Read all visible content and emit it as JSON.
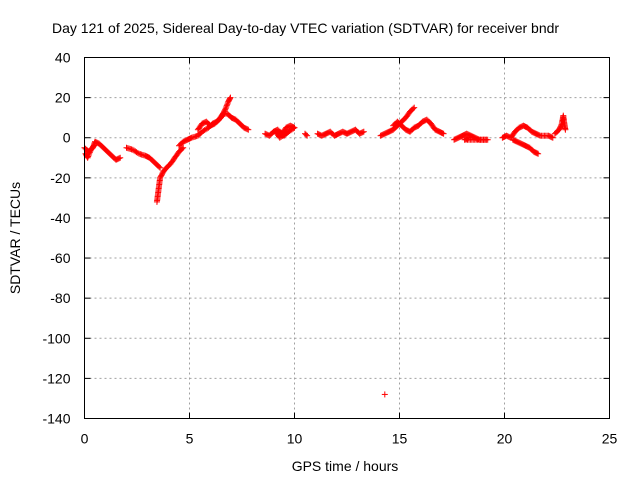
{
  "chart_data": {
    "type": "scatter",
    "title": "Day 121 of 2025, Sidereal Day-to-day VTEC variation (SDTVAR) for receiver bndr",
    "xlabel": "GPS time / hours",
    "ylabel": "SDTVAR / TECUs",
    "xlim": [
      0,
      25
    ],
    "ylim": [
      -140,
      40
    ],
    "xticks": [
      0,
      5,
      10,
      15,
      20,
      25
    ],
    "yticks": [
      -140,
      -120,
      -100,
      -80,
      -60,
      -40,
      -20,
      0,
      20,
      40
    ],
    "grid": true,
    "marker": "+",
    "color": "#ff0000",
    "segments": [
      [
        [
          0.0,
          -5
        ],
        [
          0.2,
          -7
        ],
        [
          0.4,
          -5
        ],
        [
          0.5,
          -2
        ],
        [
          0.7,
          -3
        ],
        [
          0.9,
          -5
        ],
        [
          1.1,
          -7
        ],
        [
          1.3,
          -9
        ],
        [
          1.5,
          -11
        ],
        [
          1.7,
          -10
        ]
      ],
      [
        [
          0.05,
          -8
        ],
        [
          0.15,
          -10
        ],
        [
          0.3,
          -6
        ],
        [
          0.45,
          -4
        ]
      ],
      [
        [
          2.0,
          -5
        ],
        [
          2.3,
          -6
        ],
        [
          2.6,
          -8
        ],
        [
          2.9,
          -9
        ],
        [
          3.1,
          -10
        ],
        [
          3.3,
          -12
        ],
        [
          3.5,
          -14
        ],
        [
          3.6,
          -15
        ]
      ],
      [
        [
          3.45,
          -32
        ],
        [
          3.5,
          -28
        ],
        [
          3.55,
          -24
        ],
        [
          3.6,
          -20
        ],
        [
          3.75,
          -17
        ],
        [
          3.9,
          -15
        ],
        [
          4.1,
          -13
        ],
        [
          4.3,
          -10
        ],
        [
          4.5,
          -7
        ],
        [
          4.7,
          -5
        ]
      ],
      [
        [
          4.5,
          -4
        ],
        [
          4.7,
          -2
        ],
        [
          4.9,
          -1
        ],
        [
          5.1,
          0
        ],
        [
          5.4,
          1
        ],
        [
          5.6,
          3
        ],
        [
          5.9,
          5
        ],
        [
          6.1,
          7
        ],
        [
          6.3,
          8
        ],
        [
          6.5,
          10
        ],
        [
          6.7,
          14
        ],
        [
          6.85,
          18
        ],
        [
          6.95,
          20
        ]
      ],
      [
        [
          5.4,
          4
        ],
        [
          5.6,
          7
        ],
        [
          5.8,
          8
        ],
        [
          6.0,
          6
        ],
        [
          6.2,
          7
        ],
        [
          6.4,
          9
        ],
        [
          6.6,
          12
        ],
        [
          6.8,
          12
        ],
        [
          7.0,
          10
        ],
        [
          7.2,
          9
        ],
        [
          7.4,
          7
        ],
        [
          7.6,
          5
        ],
        [
          7.8,
          4
        ]
      ],
      [
        [
          8.6,
          2
        ],
        [
          8.8,
          1
        ],
        [
          9.0,
          3
        ],
        [
          9.2,
          4
        ],
        [
          9.4,
          2
        ],
        [
          9.6,
          5
        ],
        [
          9.8,
          6
        ],
        [
          10.0,
          5
        ],
        [
          9.3,
          0
        ],
        [
          9.1,
          3
        ],
        [
          9.5,
          1
        ],
        [
          9.7,
          3
        ]
      ],
      [
        [
          10.5,
          2
        ],
        [
          10.6,
          1
        ]
      ],
      [
        [
          11.1,
          2
        ],
        [
          11.3,
          1
        ],
        [
          11.5,
          2
        ],
        [
          11.7,
          3
        ],
        [
          11.9,
          1
        ],
        [
          12.1,
          2
        ],
        [
          12.3,
          3
        ],
        [
          12.5,
          2
        ],
        [
          12.7,
          3
        ],
        [
          12.9,
          4
        ],
        [
          13.1,
          2
        ],
        [
          13.3,
          3
        ]
      ],
      [
        [
          14.1,
          1
        ],
        [
          14.3,
          2
        ],
        [
          14.5,
          3
        ],
        [
          14.7,
          4
        ],
        [
          14.9,
          6
        ],
        [
          15.1,
          8
        ],
        [
          15.3,
          10
        ],
        [
          15.5,
          13
        ],
        [
          15.7,
          15
        ]
      ],
      [
        [
          14.7,
          6
        ],
        [
          14.9,
          8
        ],
        [
          15.1,
          6
        ],
        [
          15.3,
          4
        ],
        [
          15.5,
          3
        ],
        [
          15.7,
          5
        ],
        [
          15.9,
          6
        ],
        [
          16.1,
          8
        ],
        [
          16.3,
          9
        ],
        [
          16.5,
          7
        ],
        [
          16.7,
          4
        ],
        [
          16.9,
          3
        ],
        [
          17.1,
          2
        ]
      ],
      [
        [
          17.6,
          -1
        ],
        [
          17.8,
          0
        ],
        [
          18.0,
          1
        ],
        [
          18.2,
          2
        ],
        [
          18.4,
          1
        ],
        [
          18.6,
          0
        ],
        [
          18.8,
          -1
        ],
        [
          19.0,
          -1
        ],
        [
          19.2,
          -1
        ],
        [
          18.1,
          -1
        ],
        [
          18.3,
          0
        ]
      ],
      [
        [
          19.9,
          0
        ],
        [
          20.1,
          1
        ],
        [
          20.3,
          0
        ],
        [
          20.5,
          3
        ],
        [
          20.7,
          5
        ],
        [
          20.9,
          6
        ],
        [
          21.1,
          5
        ],
        [
          21.3,
          3
        ],
        [
          21.5,
          2
        ],
        [
          21.7,
          1
        ],
        [
          21.9,
          1
        ],
        [
          22.1,
          1
        ],
        [
          22.3,
          0
        ]
      ],
      [
        [
          20.4,
          -1
        ],
        [
          20.6,
          -2
        ],
        [
          20.8,
          -3
        ],
        [
          21.0,
          -4
        ],
        [
          21.2,
          -5
        ],
        [
          21.4,
          -7
        ],
        [
          21.6,
          -8
        ]
      ],
      [
        [
          22.4,
          2
        ],
        [
          22.6,
          4
        ],
        [
          22.7,
          6
        ],
        [
          22.75,
          8
        ],
        [
          22.8,
          11
        ],
        [
          22.85,
          7
        ],
        [
          22.9,
          4
        ]
      ],
      [
        [
          14.3,
          -128
        ]
      ]
    ]
  }
}
